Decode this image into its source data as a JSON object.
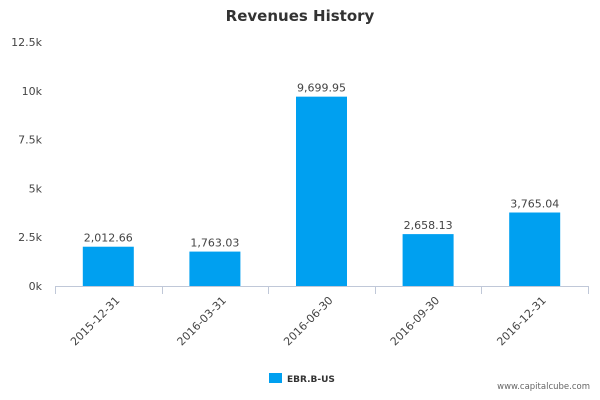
{
  "chart_data": {
    "type": "bar",
    "title": "Revenues History",
    "categories": [
      "2015-12-31",
      "2016-03-31",
      "2016-06-30",
      "2016-09-30",
      "2016-12-31"
    ],
    "series": [
      {
        "name": "EBR.B-US",
        "values": [
          2012.66,
          1763.03,
          9699.95,
          2658.13,
          3765.04
        ],
        "labels": [
          "2,012.66",
          "1,763.03",
          "9,699.95",
          "2,658.13",
          "3,765.04"
        ],
        "color": "#00a0f0"
      }
    ],
    "ylim": [
      0,
      12500
    ],
    "yticks": [
      0,
      2500,
      5000,
      7500,
      10000,
      12500
    ],
    "ytick_labels": [
      "0k",
      "2.5k",
      "5k",
      "7.5k",
      "10k",
      "12.5k"
    ],
    "xlabel": "",
    "ylabel": "",
    "legend_position": "bottom-center",
    "grid": false
  },
  "footer": {
    "source": "www.capitalcube.com"
  },
  "colors": {
    "axis": "#c0c8d8",
    "bar": "#00a0f0"
  }
}
